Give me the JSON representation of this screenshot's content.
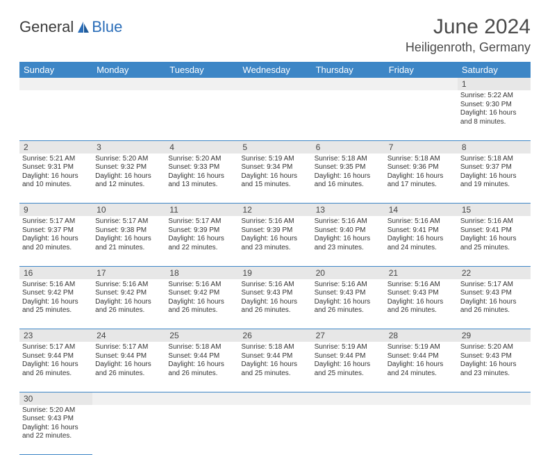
{
  "logo": {
    "text1": "General",
    "text2": "Blue"
  },
  "title": "June 2024",
  "location": "Heiligenroth, Germany",
  "colors": {
    "header_bg": "#3d86c6",
    "header_text": "#ffffff",
    "daynum_bg": "#e7e7e7",
    "cell_border": "#3d86c6",
    "body_text": "#333333",
    "title_text": "#4a4a4a",
    "logo_blue": "#2a6db8"
  },
  "weekdays": [
    "Sunday",
    "Monday",
    "Tuesday",
    "Wednesday",
    "Thursday",
    "Friday",
    "Saturday"
  ],
  "weeks": [
    [
      null,
      null,
      null,
      null,
      null,
      null,
      {
        "n": "1",
        "sr": "Sunrise: 5:22 AM",
        "ss": "Sunset: 9:30 PM",
        "dl1": "Daylight: 16 hours",
        "dl2": "and 8 minutes."
      }
    ],
    [
      {
        "n": "2",
        "sr": "Sunrise: 5:21 AM",
        "ss": "Sunset: 9:31 PM",
        "dl1": "Daylight: 16 hours",
        "dl2": "and 10 minutes."
      },
      {
        "n": "3",
        "sr": "Sunrise: 5:20 AM",
        "ss": "Sunset: 9:32 PM",
        "dl1": "Daylight: 16 hours",
        "dl2": "and 12 minutes."
      },
      {
        "n": "4",
        "sr": "Sunrise: 5:20 AM",
        "ss": "Sunset: 9:33 PM",
        "dl1": "Daylight: 16 hours",
        "dl2": "and 13 minutes."
      },
      {
        "n": "5",
        "sr": "Sunrise: 5:19 AM",
        "ss": "Sunset: 9:34 PM",
        "dl1": "Daylight: 16 hours",
        "dl2": "and 15 minutes."
      },
      {
        "n": "6",
        "sr": "Sunrise: 5:18 AM",
        "ss": "Sunset: 9:35 PM",
        "dl1": "Daylight: 16 hours",
        "dl2": "and 16 minutes."
      },
      {
        "n": "7",
        "sr": "Sunrise: 5:18 AM",
        "ss": "Sunset: 9:36 PM",
        "dl1": "Daylight: 16 hours",
        "dl2": "and 17 minutes."
      },
      {
        "n": "8",
        "sr": "Sunrise: 5:18 AM",
        "ss": "Sunset: 9:37 PM",
        "dl1": "Daylight: 16 hours",
        "dl2": "and 19 minutes."
      }
    ],
    [
      {
        "n": "9",
        "sr": "Sunrise: 5:17 AM",
        "ss": "Sunset: 9:37 PM",
        "dl1": "Daylight: 16 hours",
        "dl2": "and 20 minutes."
      },
      {
        "n": "10",
        "sr": "Sunrise: 5:17 AM",
        "ss": "Sunset: 9:38 PM",
        "dl1": "Daylight: 16 hours",
        "dl2": "and 21 minutes."
      },
      {
        "n": "11",
        "sr": "Sunrise: 5:17 AM",
        "ss": "Sunset: 9:39 PM",
        "dl1": "Daylight: 16 hours",
        "dl2": "and 22 minutes."
      },
      {
        "n": "12",
        "sr": "Sunrise: 5:16 AM",
        "ss": "Sunset: 9:39 PM",
        "dl1": "Daylight: 16 hours",
        "dl2": "and 23 minutes."
      },
      {
        "n": "13",
        "sr": "Sunrise: 5:16 AM",
        "ss": "Sunset: 9:40 PM",
        "dl1": "Daylight: 16 hours",
        "dl2": "and 23 minutes."
      },
      {
        "n": "14",
        "sr": "Sunrise: 5:16 AM",
        "ss": "Sunset: 9:41 PM",
        "dl1": "Daylight: 16 hours",
        "dl2": "and 24 minutes."
      },
      {
        "n": "15",
        "sr": "Sunrise: 5:16 AM",
        "ss": "Sunset: 9:41 PM",
        "dl1": "Daylight: 16 hours",
        "dl2": "and 25 minutes."
      }
    ],
    [
      {
        "n": "16",
        "sr": "Sunrise: 5:16 AM",
        "ss": "Sunset: 9:42 PM",
        "dl1": "Daylight: 16 hours",
        "dl2": "and 25 minutes."
      },
      {
        "n": "17",
        "sr": "Sunrise: 5:16 AM",
        "ss": "Sunset: 9:42 PM",
        "dl1": "Daylight: 16 hours",
        "dl2": "and 26 minutes."
      },
      {
        "n": "18",
        "sr": "Sunrise: 5:16 AM",
        "ss": "Sunset: 9:42 PM",
        "dl1": "Daylight: 16 hours",
        "dl2": "and 26 minutes."
      },
      {
        "n": "19",
        "sr": "Sunrise: 5:16 AM",
        "ss": "Sunset: 9:43 PM",
        "dl1": "Daylight: 16 hours",
        "dl2": "and 26 minutes."
      },
      {
        "n": "20",
        "sr": "Sunrise: 5:16 AM",
        "ss": "Sunset: 9:43 PM",
        "dl1": "Daylight: 16 hours",
        "dl2": "and 26 minutes."
      },
      {
        "n": "21",
        "sr": "Sunrise: 5:16 AM",
        "ss": "Sunset: 9:43 PM",
        "dl1": "Daylight: 16 hours",
        "dl2": "and 26 minutes."
      },
      {
        "n": "22",
        "sr": "Sunrise: 5:17 AM",
        "ss": "Sunset: 9:43 PM",
        "dl1": "Daylight: 16 hours",
        "dl2": "and 26 minutes."
      }
    ],
    [
      {
        "n": "23",
        "sr": "Sunrise: 5:17 AM",
        "ss": "Sunset: 9:44 PM",
        "dl1": "Daylight: 16 hours",
        "dl2": "and 26 minutes."
      },
      {
        "n": "24",
        "sr": "Sunrise: 5:17 AM",
        "ss": "Sunset: 9:44 PM",
        "dl1": "Daylight: 16 hours",
        "dl2": "and 26 minutes."
      },
      {
        "n": "25",
        "sr": "Sunrise: 5:18 AM",
        "ss": "Sunset: 9:44 PM",
        "dl1": "Daylight: 16 hours",
        "dl2": "and 26 minutes."
      },
      {
        "n": "26",
        "sr": "Sunrise: 5:18 AM",
        "ss": "Sunset: 9:44 PM",
        "dl1": "Daylight: 16 hours",
        "dl2": "and 25 minutes."
      },
      {
        "n": "27",
        "sr": "Sunrise: 5:19 AM",
        "ss": "Sunset: 9:44 PM",
        "dl1": "Daylight: 16 hours",
        "dl2": "and 25 minutes."
      },
      {
        "n": "28",
        "sr": "Sunrise: 5:19 AM",
        "ss": "Sunset: 9:44 PM",
        "dl1": "Daylight: 16 hours",
        "dl2": "and 24 minutes."
      },
      {
        "n": "29",
        "sr": "Sunrise: 5:20 AM",
        "ss": "Sunset: 9:43 PM",
        "dl1": "Daylight: 16 hours",
        "dl2": "and 23 minutes."
      }
    ],
    [
      {
        "n": "30",
        "sr": "Sunrise: 5:20 AM",
        "ss": "Sunset: 9:43 PM",
        "dl1": "Daylight: 16 hours",
        "dl2": "and 22 minutes."
      },
      null,
      null,
      null,
      null,
      null,
      null
    ]
  ]
}
